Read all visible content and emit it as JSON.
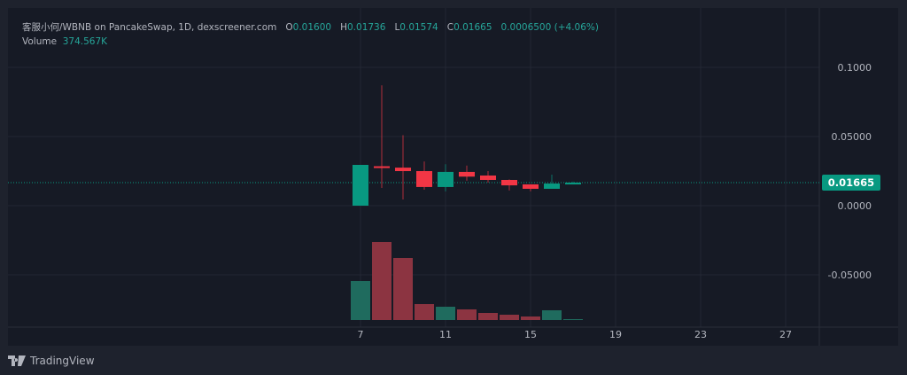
{
  "header": {
    "symbol": "客服小何/WBNB on PancakeSwap, 1D, dexscreener.com",
    "o_label": "O",
    "o": "0.01600",
    "h_label": "H",
    "h": "0.01736",
    "l_label": "L",
    "l": "0.01574",
    "c_label": "C",
    "c": "0.01665",
    "change": "0.0006500 (+4.06%)",
    "volume_label": "Volume",
    "volume": "374.567K"
  },
  "brand": "TradingView",
  "colors": {
    "up": "#089981",
    "down": "#f23645",
    "up_vol": "#1f6b5e",
    "down_vol": "#8c3441",
    "grid": "#232733",
    "price_tag": "#089981"
  },
  "chart_data": {
    "type": "candlestick",
    "x": [
      7,
      8,
      9,
      10,
      11,
      12,
      13,
      14,
      15,
      16,
      17
    ],
    "open": [
      0.0,
      0.0285,
      0.0275,
      0.025,
      0.0135,
      0.0244,
      0.0218,
      0.0186,
      0.0154,
      0.0122,
      0.016
    ],
    "high": [
      0.0295,
      0.087,
      0.051,
      0.032,
      0.03,
      0.029,
      0.025,
      0.019,
      0.0154,
      0.0224,
      0.01736
    ],
    "low": [
      0.0,
      0.0128,
      0.0045,
      0.0115,
      0.0103,
      0.018,
      0.0167,
      0.011,
      0.0103,
      0.0122,
      0.01574
    ],
    "close": [
      0.0295,
      0.0275,
      0.025,
      0.0135,
      0.0244,
      0.021,
      0.0186,
      0.0147,
      0.0122,
      0.016,
      0.01665
    ],
    "volume_relative": [
      44,
      88,
      70,
      18,
      15,
      12,
      8,
      6,
      4,
      11,
      1
    ],
    "last_price": "0.01665",
    "y_ticks": [
      "0.1000",
      "0.05000",
      "0.0000",
      "-0.05000"
    ],
    "y_tick_values": [
      0.1,
      0.05,
      0,
      -0.05
    ],
    "x_ticks": [
      "7",
      "11",
      "15",
      "19",
      "23",
      "27"
    ],
    "x_tick_values": [
      7,
      11,
      15,
      19,
      23,
      27
    ],
    "grid": true
  }
}
